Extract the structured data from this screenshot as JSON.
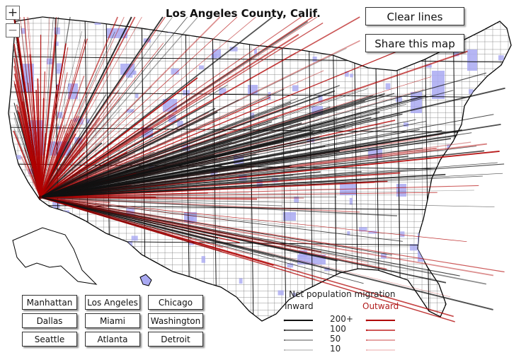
{
  "title": "Los Angeles County, Calif.",
  "zoom": {
    "in_symbol": "+",
    "out_symbol": "−"
  },
  "buttons": {
    "clear_lines": "Clear lines",
    "share_map": "Share this map"
  },
  "city_buttons": [
    "Manhattan",
    "Los Angeles",
    "Chicago",
    "Dallas",
    "Miami",
    "Washington",
    "Seattle",
    "Atlanta",
    "Detroit"
  ],
  "legend": {
    "title": "Net population migration",
    "inward_label": "Inward",
    "outward_label": "Outward",
    "levels": [
      "200+",
      "100",
      "50",
      "10"
    ]
  },
  "colors": {
    "inward": "#111111",
    "outward": "#b00000",
    "county_highlight": "#a9a9f2",
    "state_border": "#000000",
    "county_border": "#777777"
  },
  "icons": {
    "zoom_in": "plus-icon",
    "zoom_out": "minus-icon"
  }
}
